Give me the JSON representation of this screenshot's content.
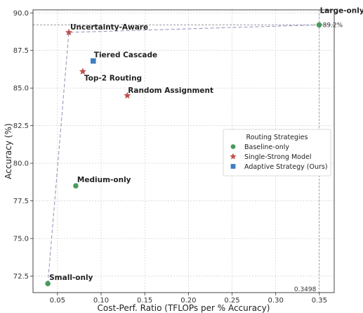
{
  "chart_data": {
    "type": "scatter",
    "title": "",
    "xlabel": "Cost-Perf. Ratio (TFLOPs per % Accuracy)",
    "ylabel": "Accuracy (%)",
    "xlim": [
      0.022,
      0.367
    ],
    "ylim": [
      71.4,
      90.2
    ],
    "xticks": [
      0.05,
      0.1,
      0.15,
      0.2,
      0.25,
      0.3,
      0.35
    ],
    "xtick_labels": [
      "0.05",
      "0.10",
      "0.15",
      "0.20",
      "0.25",
      "0.30",
      "0.35"
    ],
    "yticks": [
      72.5,
      75.0,
      77.5,
      80.0,
      82.5,
      85.0,
      87.5,
      90.0
    ],
    "ytick_labels": [
      "72.5",
      "75.0",
      "77.5",
      "80.0",
      "82.5",
      "85.0",
      "87.5",
      "90.0"
    ],
    "grid": true,
    "legend": {
      "title": "Routing Strategies",
      "placement": "center-right",
      "entries": [
        {
          "label": "Baseline-only",
          "marker": "circle",
          "color": "#4a9a5c"
        },
        {
          "label": "Single-Strong Model",
          "marker": "star",
          "color": "#c0504d"
        },
        {
          "label": "Adaptive Strategy (Ours)",
          "marker": "square",
          "color": "#3d7fc1"
        }
      ]
    },
    "points": [
      {
        "name": "Small-only",
        "x": 0.039,
        "y": 72.0,
        "category": "Baseline-only"
      },
      {
        "name": "Medium-only",
        "x": 0.071,
        "y": 78.5,
        "category": "Baseline-only"
      },
      {
        "name": "Large-only",
        "x": 0.3498,
        "y": 89.2,
        "category": "Baseline-only"
      },
      {
        "name": "Uncertainty-Aware",
        "x": 0.063,
        "y": 88.7,
        "category": "Single-Strong Model"
      },
      {
        "name": "Top-2 Routing",
        "x": 0.079,
        "y": 86.1,
        "category": "Single-Strong Model"
      },
      {
        "name": "Random Assignment",
        "x": 0.13,
        "y": 84.5,
        "category": "Single-Strong Model"
      },
      {
        "name": "Tiered Cascade",
        "x": 0.091,
        "y": 86.8,
        "category": "Adaptive Strategy (Ours)"
      }
    ],
    "frontier": [
      "Small-only",
      "Uncertainty-Aware",
      "Large-only"
    ],
    "reference_lines": {
      "x": 0.3498,
      "y": 89.2
    },
    "annotations": {
      "large_y_value": "89.2%",
      "large_x_value": "0.3498"
    }
  }
}
